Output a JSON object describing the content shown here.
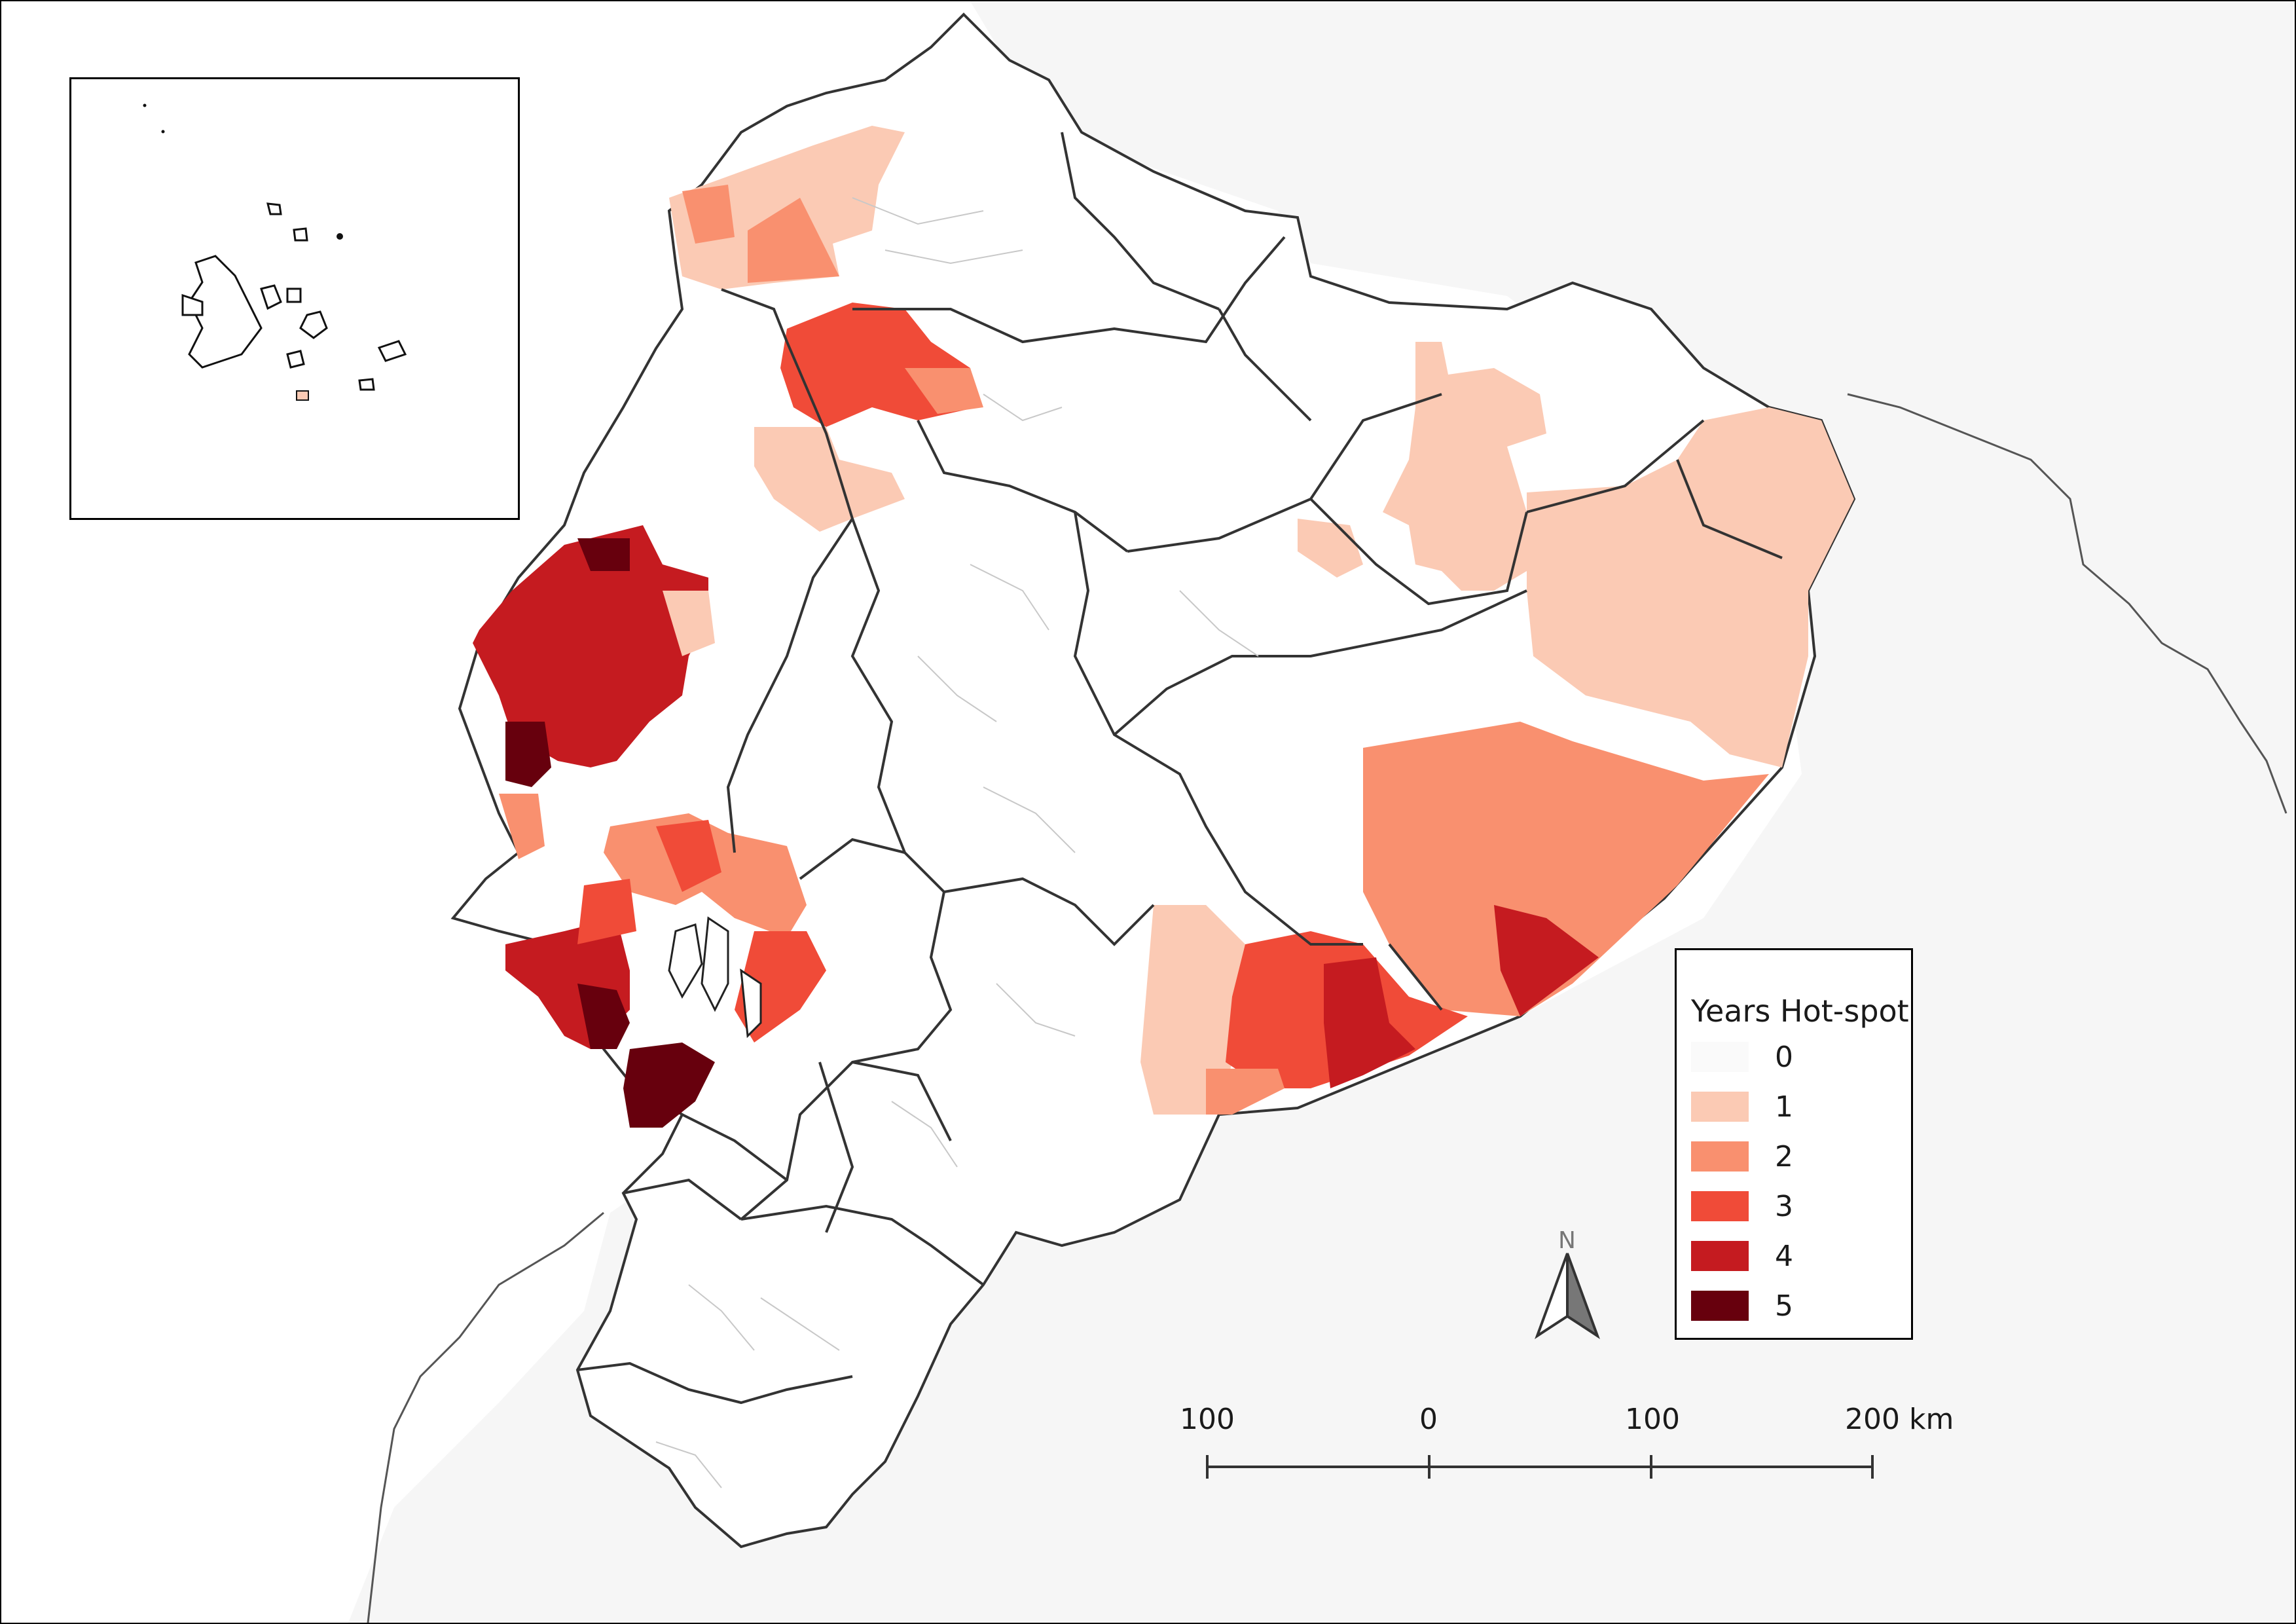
{
  "legend": {
    "title": "Years Hot-spot",
    "classes": [
      {
        "label": "0",
        "color": "#ffffff"
      },
      {
        "label": "1",
        "color": "#fbcab4"
      },
      {
        "label": "2",
        "color": "#f9906f"
      },
      {
        "label": "3",
        "color": "#f04b38"
      },
      {
        "label": "4",
        "color": "#c51b20"
      },
      {
        "label": "5",
        "color": "#67000d"
      }
    ]
  },
  "scale_bar": {
    "labels": [
      "100",
      "0",
      "100",
      "200 km"
    ]
  },
  "north_arrow": {
    "label": "N"
  },
  "colors": {
    "neighbor_land": "#f6f6f6",
    "ocean": "#ffffff",
    "province_border": "#333333",
    "parish_border": "#c8c8c8"
  },
  "inset": {
    "description_icon": "galapagos-islands-inset"
  }
}
